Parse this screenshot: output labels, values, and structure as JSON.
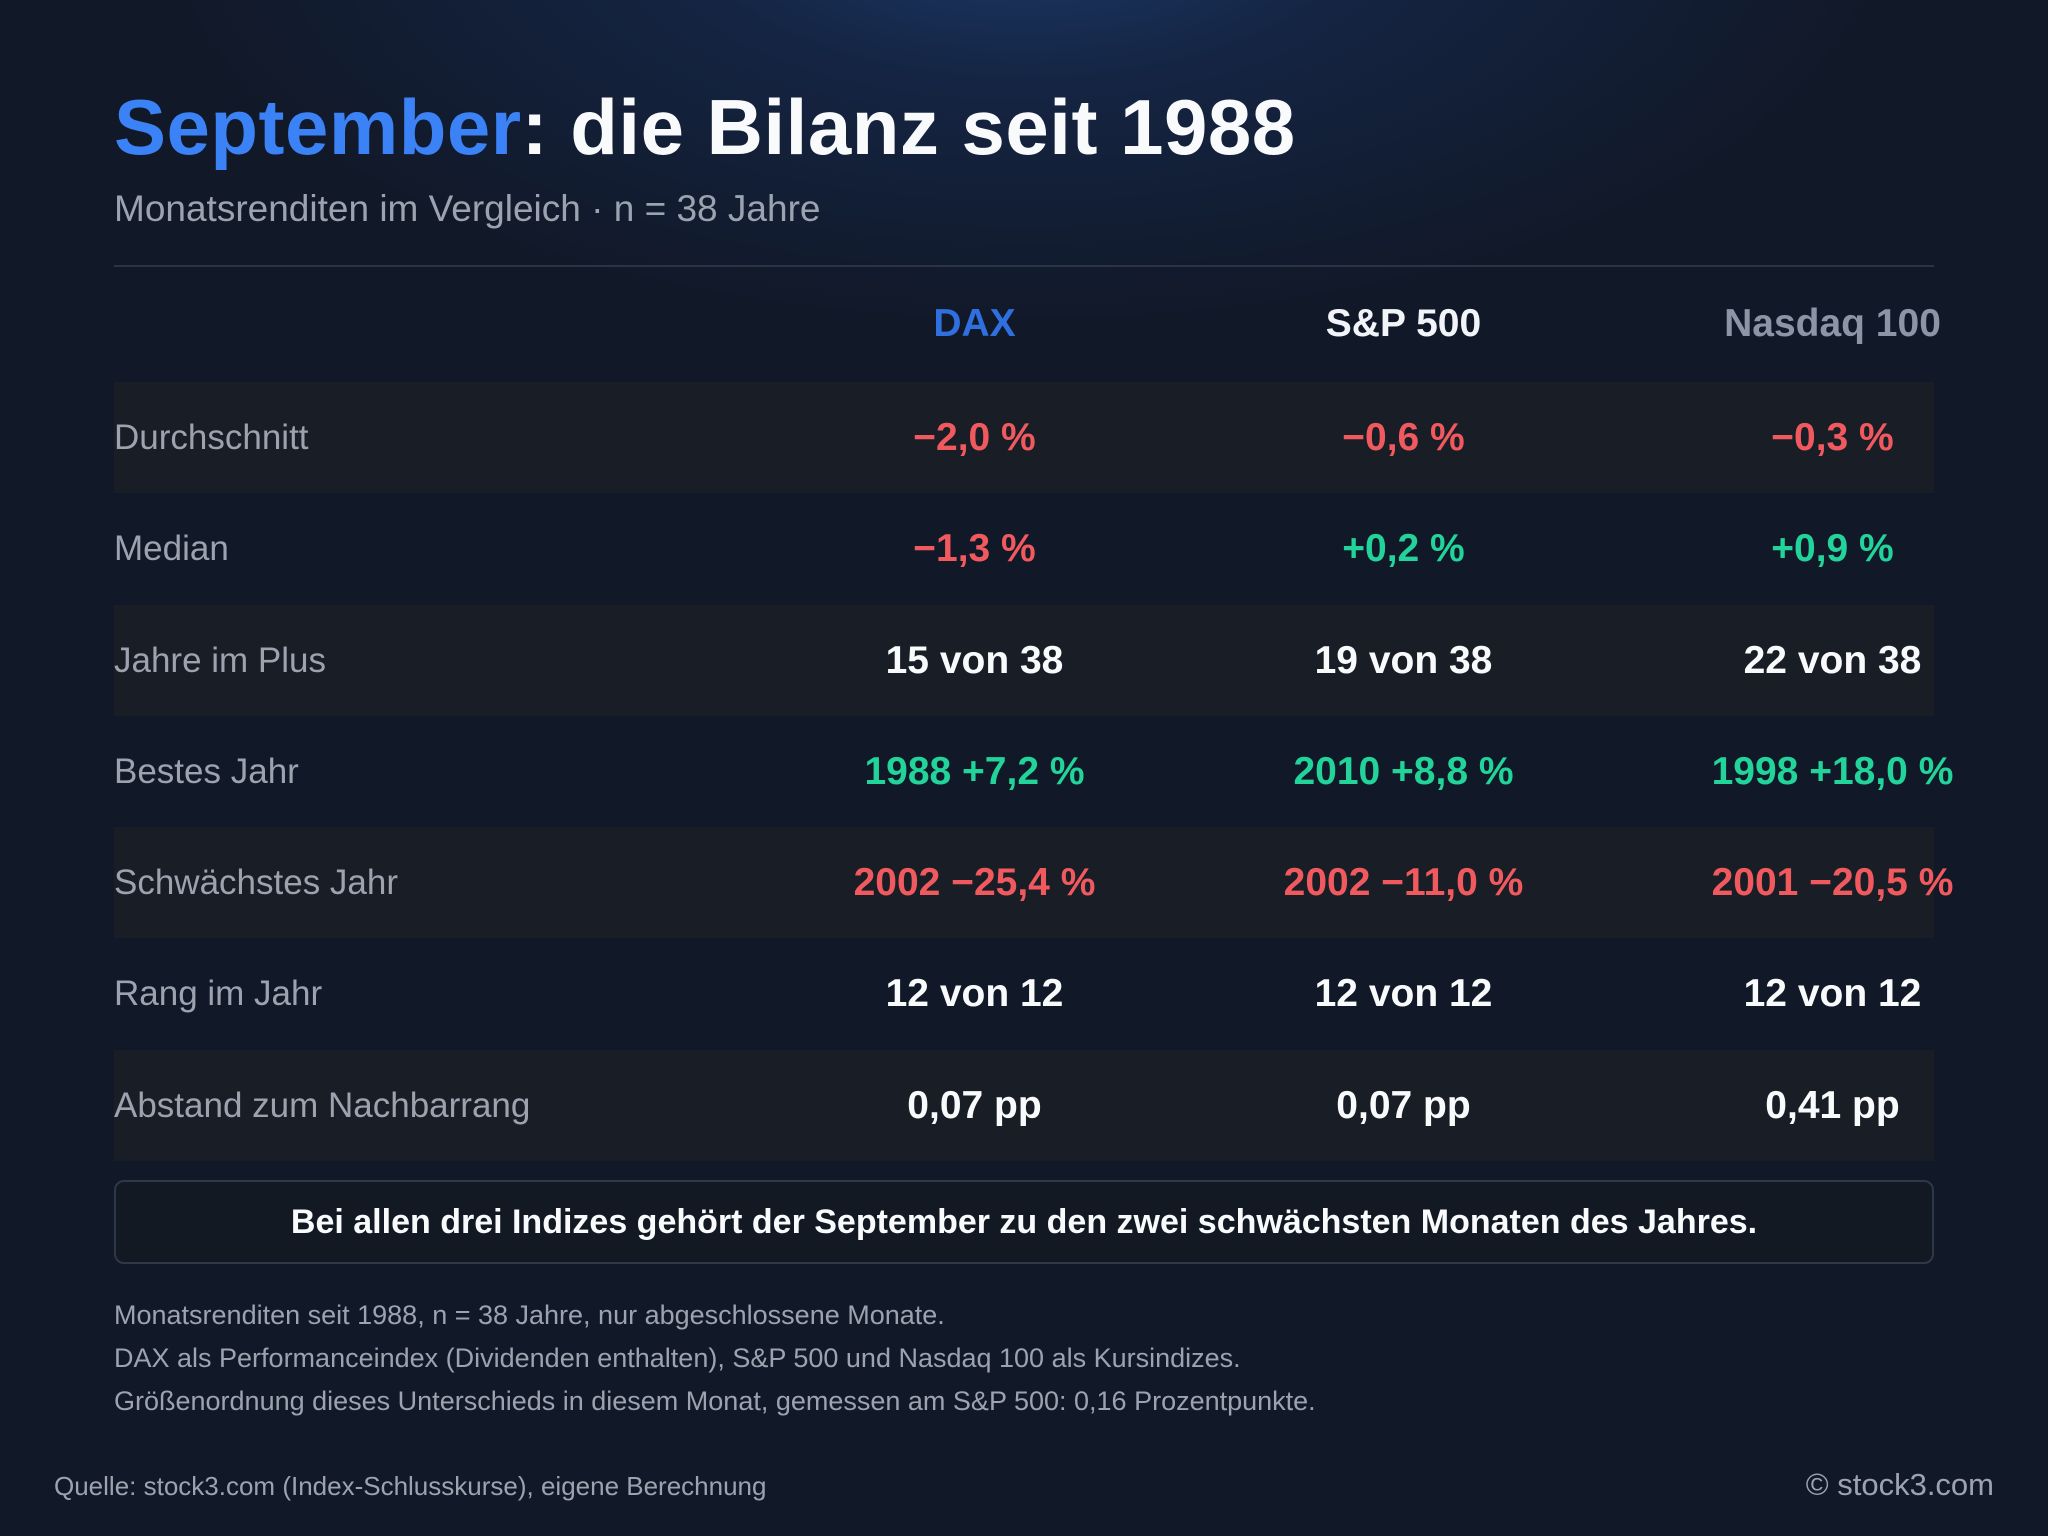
{
  "header": {
    "title_accent": "September",
    "title_rest": ": die Bilanz seit 1988",
    "subtitle": "Monatsrenditen im Vergleich · n = 38 Jahre"
  },
  "table": {
    "columns": [
      "DAX",
      "S&P 500",
      "Nasdaq 100"
    ],
    "column_colors": [
      "#2f6fdf",
      "#f1f5f9",
      "#8b95a5"
    ],
    "rows": [
      {
        "label": "Durchschnitt",
        "values": [
          "−2,0 %",
          "−0,6 %",
          "−0,3 %"
        ],
        "tones": [
          "neg",
          "neg",
          "neg"
        ]
      },
      {
        "label": "Median",
        "values": [
          "−1,3 %",
          "+0,2 %",
          "+0,9 %"
        ],
        "tones": [
          "neg",
          "pos",
          "pos"
        ]
      },
      {
        "label": "Jahre im Plus",
        "values": [
          "15 von 38",
          "19 von 38",
          "22 von 38"
        ],
        "tones": [
          "neu",
          "neu",
          "neu"
        ]
      },
      {
        "label": "Bestes Jahr",
        "values": [
          "1988 +7,2 %",
          "2010 +8,8 %",
          "1998 +18,0 %"
        ],
        "tones": [
          "pos",
          "pos",
          "pos"
        ]
      },
      {
        "label": "Schwächstes Jahr",
        "values": [
          "2002 −25,4 %",
          "2002 −11,0 %",
          "2001 −20,5 %"
        ],
        "tones": [
          "neg",
          "neg",
          "neg"
        ]
      },
      {
        "label": "Rang im Jahr",
        "values": [
          "12 von 12",
          "12 von 12",
          "12 von 12"
        ],
        "tones": [
          "neu",
          "neu",
          "neu"
        ]
      },
      {
        "label": "Abstand zum Nachbarrang",
        "values": [
          "0,07 pp",
          "0,07 pp",
          "0,41 pp"
        ],
        "tones": [
          "neu",
          "neu",
          "neu"
        ]
      }
    ]
  },
  "callout": "Bei allen drei Indizes gehört der September zu den zwei schwächsten Monaten des Jahres.",
  "notes": [
    "Monatsrenditen seit 1988, n = 38 Jahre, nur abgeschlossene Monate.",
    "DAX als Performanceindex (Dividenden enthalten), S&P 500 und Nasdaq 100 als Kursindizes.",
    "Größenordnung dieses Unterschieds in diesem Monat, gemessen am S&P 500: 0,16 Prozentpunkte."
  ],
  "footer": {
    "source": "Quelle: stock3.com (Index-Schlusskurse), eigene Berechnung",
    "copyright": "© stock3.com"
  },
  "colors": {
    "accent": "#3b82f6",
    "negative": "#f05a5e",
    "positive": "#22d39a",
    "background": "#111827"
  }
}
